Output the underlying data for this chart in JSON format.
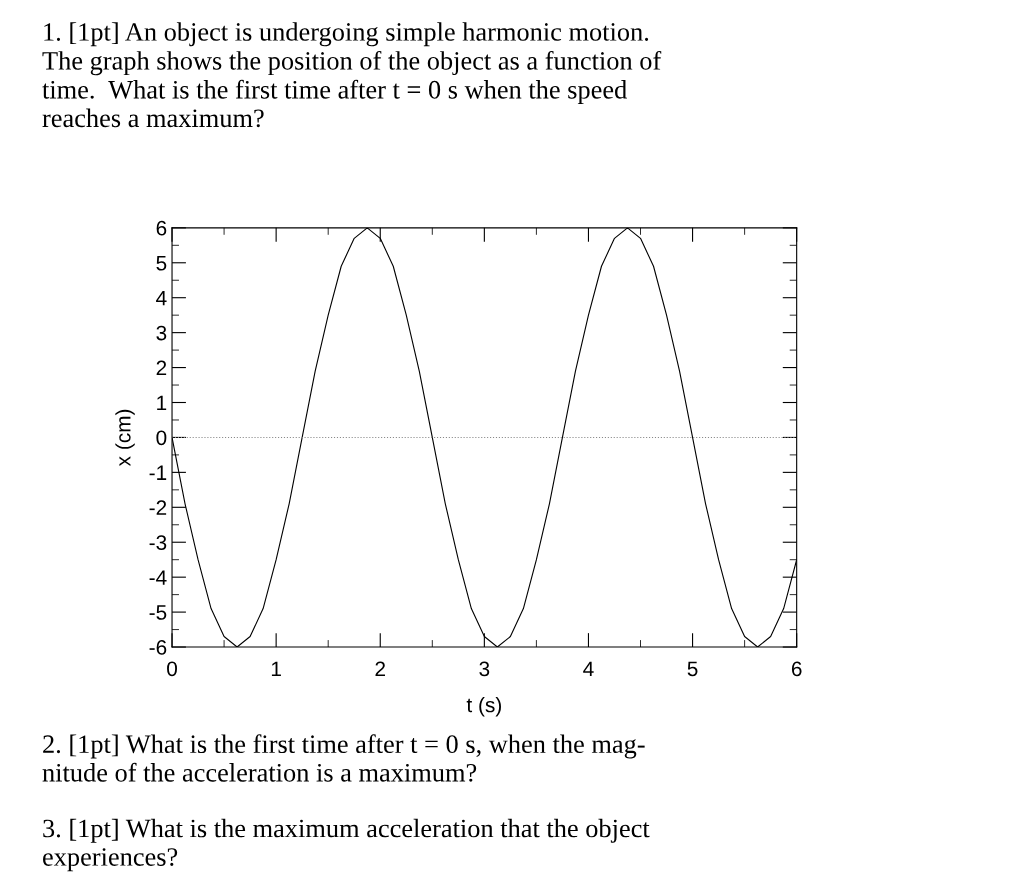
{
  "chart_data": {
    "type": "line",
    "title": "1. [1pt] An object is undergoing simple harmonic motion.\nThe graph shows the position of the object as a function of\ntime.  What is the first time after t = 0 s when the speed\nreaches a maximum?",
    "xlabel": "t (s)",
    "ylabel": "x (cm)",
    "annotations": [
      "2. [1pt] What is the first time after t = 0 s, when the mag-\nnitude of the acceleration is a maximum?",
      "3. [1pt] What is the maximum acceleration that the object\nexperiences?"
    ],
    "series": [
      {
        "color": "#000000",
        "x": [
          0,
          0.125,
          0.25,
          0.375,
          0.5,
          0.625,
          0.75,
          0.875,
          1,
          1.125,
          1.25,
          1.375,
          1.5,
          1.625,
          1.75,
          1.875,
          2,
          2.125,
          2.25,
          2.375,
          2.5,
          2.625,
          2.75,
          2.875,
          3,
          3.125,
          3.25,
          3.375,
          3.5,
          3.625,
          3.75,
          3.875,
          4,
          4.125,
          4.25,
          4.375,
          4.5,
          4.625,
          4.75,
          4.875,
          5,
          5.125,
          5.25,
          5.375,
          5.5,
          5.625,
          5.75,
          5.875,
          6
        ],
        "values": [
          0,
          -1.9,
          -3.5,
          -4.9,
          -5.7,
          -6,
          -5.7,
          -4.9,
          -3.5,
          -1.9,
          0,
          1.9,
          3.5,
          4.9,
          5.7,
          6,
          5.7,
          4.9,
          3.5,
          1.9,
          0,
          -1.9,
          -3.5,
          -4.9,
          -5.7,
          -6,
          -5.7,
          -4.9,
          -3.5,
          -1.9,
          0,
          1.9,
          3.5,
          4.9,
          5.7,
          6,
          5.7,
          4.9,
          3.5,
          1.9,
          0,
          -1.9,
          -3.5,
          -4.9,
          -5.7,
          -6,
          -5.7,
          -4.9,
          -3.5
        ]
      }
    ],
    "xlim": [
      0,
      6
    ],
    "ylim": [
      -6,
      6
    ],
    "xticks": [
      0,
      {
        "value": 0.5,
        "label": null
      },
      1,
      {
        "value": 1.5,
        "label": null
      },
      2,
      {
        "value": 2.5,
        "label": null
      },
      3,
      {
        "value": 3.5,
        "label": null
      },
      4,
      {
        "value": 4.5,
        "label": null
      },
      5,
      {
        "value": 5.5,
        "label": null
      },
      6
    ],
    "yticks": [
      -6,
      {
        "value": -5.5,
        "label": null
      },
      -5,
      {
        "value": -4.5,
        "label": null
      },
      -4,
      {
        "value": -3.5,
        "label": null
      },
      -3,
      {
        "value": -2.5,
        "label": null
      },
      -2,
      {
        "value": -1.5,
        "label": null
      },
      -1,
      {
        "value": -0.5,
        "label": null
      },
      0,
      {
        "value": 0.5,
        "label": null
      },
      1,
      {
        "value": 1.5,
        "label": null
      },
      2,
      {
        "value": 2.5,
        "label": null
      },
      3,
      {
        "value": 3.5,
        "label": null
      },
      4,
      {
        "value": 4.5,
        "label": null
      },
      5,
      {
        "value": 5.5,
        "label": null
      },
      6
    ],
    "ref_lines": [
      {
        "axis": "y",
        "value": 0,
        "line_style": "dotted",
        "color": "#888888"
      }
    ],
    "grid": false,
    "legend": false,
    "marker": "none",
    "line_style": "solid"
  }
}
